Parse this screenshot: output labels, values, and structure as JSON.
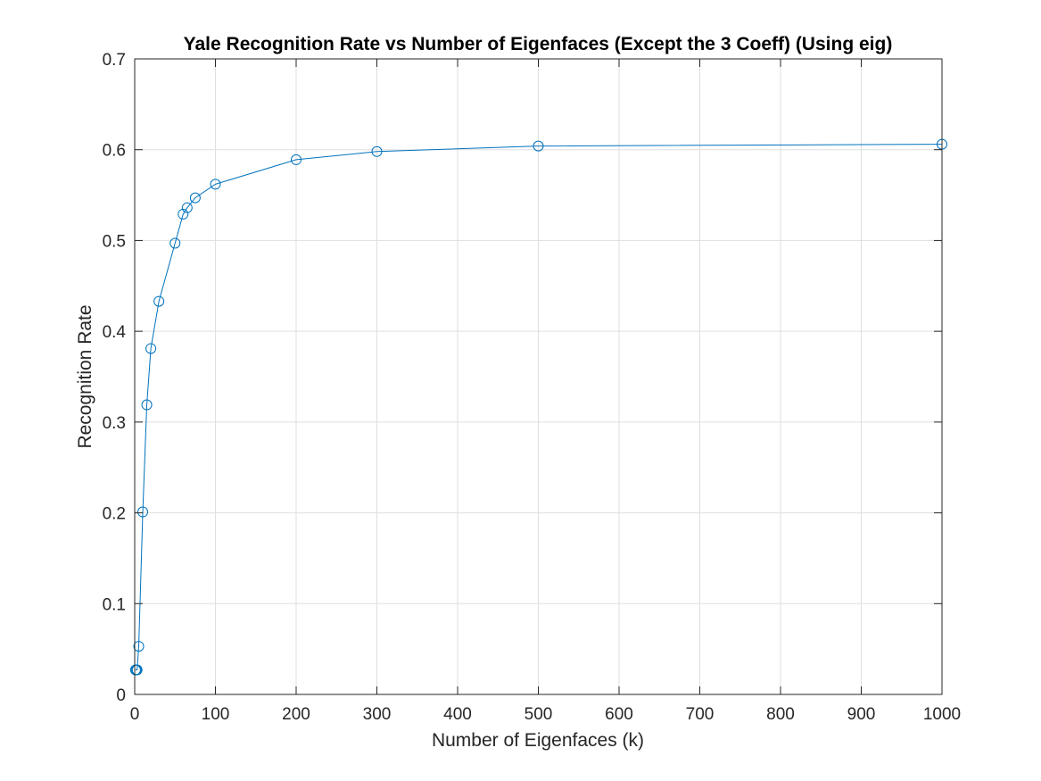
{
  "chart_data": {
    "type": "line",
    "title": "Yale Recognition Rate vs Number of Eigenfaces (Except the 3 Coeff) (Using eig)",
    "xlabel": "Number of Eigenfaces (k)",
    "ylabel": "Recognition Rate",
    "xlim": [
      0,
      1000
    ],
    "ylim": [
      0,
      0.7
    ],
    "xticks": [
      0,
      100,
      200,
      300,
      400,
      500,
      600,
      700,
      800,
      900,
      1000
    ],
    "yticks": [
      0,
      0.1,
      0.2,
      0.3,
      0.4,
      0.5,
      0.6,
      0.7
    ],
    "xtick_labels": [
      "0",
      "100",
      "200",
      "300",
      "400",
      "500",
      "600",
      "700",
      "800",
      "900",
      "1000"
    ],
    "ytick_labels": [
      "0",
      "0.1",
      "0.2",
      "0.3",
      "0.4",
      "0.5",
      "0.6",
      "0.7"
    ],
    "grid": true,
    "marker": "circle",
    "series": [
      {
        "color": "#0072BD",
        "x": [
          1,
          2,
          3,
          5,
          10,
          15,
          20,
          30,
          50,
          60,
          65,
          75,
          100,
          200,
          300,
          500,
          1000
        ],
        "y": [
          0.027,
          0.027,
          0.027,
          0.053,
          0.201,
          0.319,
          0.381,
          0.433,
          0.497,
          0.529,
          0.536,
          0.547,
          0.562,
          0.589,
          0.598,
          0.604,
          0.606
        ]
      }
    ]
  }
}
